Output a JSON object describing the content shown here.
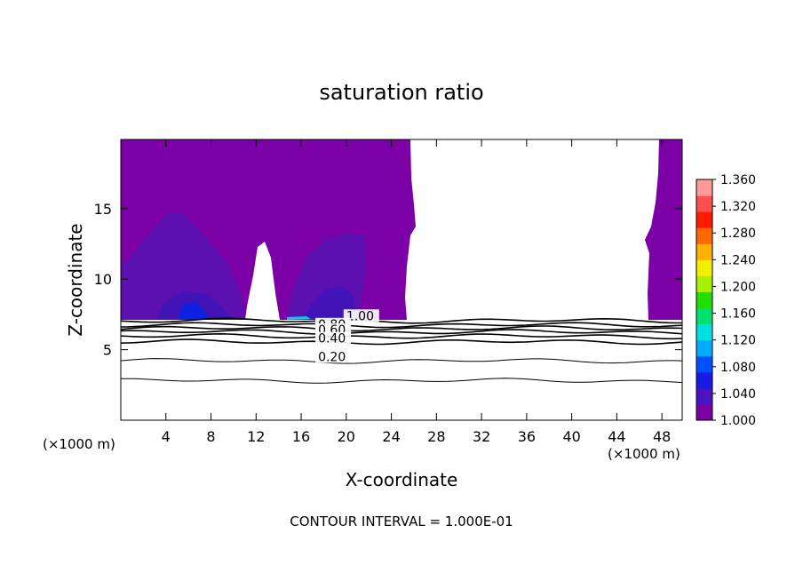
{
  "chart_data": {
    "type": "contour",
    "title": "saturation ratio",
    "xlabel": "X-coordinate",
    "ylabel": "Z-coordinate",
    "x_unit_left": "(×1000 m)",
    "x_unit_right": "(×1000 m)",
    "footer": "CONTOUR INTERVAL = 1.000E-01",
    "xlim": [
      0,
      49.8
    ],
    "ylim": [
      0,
      19.9
    ],
    "x_ticks": [
      4,
      8,
      12,
      16,
      20,
      24,
      28,
      32,
      36,
      40,
      44,
      48
    ],
    "x_tick_labels": [
      "4",
      "8",
      "12",
      "16",
      "20",
      "24",
      "28",
      "32",
      "36",
      "40",
      "44",
      "48"
    ],
    "y_ticks": [
      5,
      10,
      15
    ],
    "y_tick_labels": [
      "5",
      "10",
      "15"
    ],
    "contour_labels": [
      {
        "text": "1.00",
        "x": 20.0,
        "y": 7.1
      },
      {
        "text": "0.80",
        "x": 17.5,
        "y": 6.5
      },
      {
        "text": "0.60",
        "x": 17.5,
        "y": 6.1
      },
      {
        "text": "0.40",
        "x": 17.5,
        "y": 5.5
      },
      {
        "text": "0.20",
        "x": 17.5,
        "y": 4.2
      }
    ],
    "contour_lines_z": [
      7.05,
      6.75,
      6.5,
      6.25,
      5.95,
      5.55,
      4.2,
      2.8
    ],
    "colorbar": {
      "min": 1.0,
      "max": 1.36,
      "tick_labels": [
        "1.360",
        "1.320",
        "1.280",
        "1.240",
        "1.200",
        "1.160",
        "1.120",
        "1.080",
        "1.040",
        "1.000"
      ],
      "colors": [
        "#7a00a6",
        "#4b12c0",
        "#1a1ae6",
        "#0050ff",
        "#00aaff",
        "#00e0e0",
        "#00e070",
        "#22dd00",
        "#aaee00",
        "#f0f000",
        "#ffb000",
        "#ff6a00",
        "#ff1a00",
        "#ff5050",
        "#ff9a9a"
      ]
    },
    "colors": {
      "background_fill": "#7b00a5",
      "deep_fill": "#5c10b0",
      "deeper_fill": "#4214b8",
      "blue_patch": "#1020e0",
      "cyan_patch": "#16c0f0"
    },
    "grid": false,
    "legend": "colorbar-right"
  }
}
